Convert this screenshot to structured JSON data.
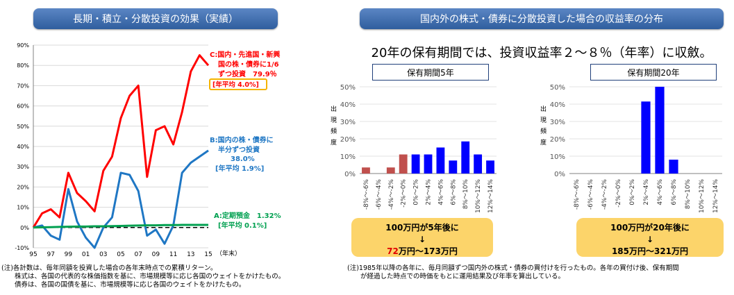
{
  "left_chart": {
    "title": "長期・積立・分散投資の効果（実績）",
    "y_ticks": [
      "90%",
      "80%",
      "70%",
      "60%",
      "50%",
      "40%",
      "30%",
      "20%",
      "10%",
      "0%",
      "-10%"
    ],
    "x_ticks": [
      "95",
      "97",
      "99",
      "01",
      "03",
      "05",
      "07",
      "09",
      "11",
      "13",
      "15"
    ],
    "x_unit": "（年末）",
    "series_c": {
      "label_lines": [
        "C:国内・先進国・新興",
        "国の株・債券に1/6",
        "ずつ投資　79.9％"
      ],
      "avg": "[年平均 4.0%]",
      "color": "#ff0000"
    },
    "series_b": {
      "label_lines": [
        "B:国内の株・債券に",
        "半分ずつ投資",
        "38.0%",
        "[年平均 1.9%]"
      ],
      "color": "#1f77c4"
    },
    "series_a": {
      "label": "A:定期預金　1.32%",
      "avg": "[年平均 0.1%]",
      "color": "#00a050"
    }
  },
  "chart_data": [
    {
      "type": "line",
      "ylim": [
        -10,
        90
      ],
      "x": [
        1995,
        1996,
        1997,
        1998,
        1999,
        2000,
        2001,
        2002,
        2003,
        2004,
        2005,
        2006,
        2007,
        2008,
        2009,
        2010,
        2011,
        2012,
        2013,
        2014,
        2015
      ],
      "series": [
        {
          "name": "C:国内・先進国・新興国の株・債券に1/6ずつ投資",
          "values": [
            0,
            7,
            9,
            5,
            27,
            17,
            13,
            8,
            28,
            35,
            54,
            65,
            70,
            25,
            48,
            50,
            41,
            57,
            77,
            85,
            80
          ]
        },
        {
          "name": "B:国内の株・債券に半分ずつ投資",
          "values": [
            0,
            1,
            -4,
            -6,
            19,
            3,
            -5,
            -10,
            0,
            5,
            27,
            26,
            18,
            -4,
            -1,
            -8,
            1,
            27,
            32,
            35,
            38
          ]
        },
        {
          "name": "A:定期預金",
          "values": [
            0,
            0.1,
            0.2,
            0.3,
            0.4,
            0.5,
            0.5,
            0.6,
            0.6,
            0.7,
            0.8,
            0.9,
            1.0,
            1.1,
            1.1,
            1.2,
            1.2,
            1.3,
            1.3,
            1.3,
            1.32
          ]
        }
      ]
    },
    {
      "type": "bar",
      "title": "保有期間5年",
      "ylabel": "出現頻度",
      "ylim": [
        0,
        50
      ],
      "categories": [
        "-8%～-6%",
        "-6%～-4%",
        "-4%～-2%",
        "-2%～0%",
        "0%～2%",
        "2%～4%",
        "4%～6%",
        "6%～8%",
        "8%～10%",
        "10%～12%",
        "12%～14%"
      ],
      "values": [
        3.5,
        0,
        3.5,
        11,
        11,
        11,
        15,
        7.5,
        18.5,
        11,
        7.5
      ]
    },
    {
      "type": "bar",
      "title": "保有期間20年",
      "ylabel": "出現頻度",
      "ylim": [
        0,
        50
      ],
      "categories": [
        "-8%～-6%",
        "-6%～-4%",
        "-4%～-2%",
        "-2%～0%",
        "0%～2%",
        "2%～4%",
        "4%～6%",
        "6%～8%",
        "8%～10%",
        "10%～12%",
        "12%～14%"
      ],
      "values": [
        0,
        0,
        0,
        0,
        0,
        41.5,
        50,
        8,
        0,
        0,
        0
      ]
    }
  ],
  "right_panel": {
    "title": "国内外の株式・債券に分散投資した場合の収益率の分布",
    "subtitle": "20年の保有期間では、投資収益率２～８％（年率）に収斂。",
    "y_ticks_5": [
      "50%",
      "40%",
      "30%",
      "20%",
      "10%",
      "0%"
    ],
    "y_ticks_20": [
      "50%",
      "40%",
      "30%",
      "20%",
      "10%",
      "0%"
    ],
    "ylabel_chars": [
      "出",
      "現",
      "頻",
      "度"
    ],
    "result5": {
      "line1": "100万円が5年後に",
      "arrow": "↓",
      "low": "72",
      "rest": "万円～173万円"
    },
    "result20": {
      "line1": "100万円が20年後に",
      "arrow": "↓",
      "line3": "185万円～321万円"
    },
    "colors": {
      "negative": "#c0504d",
      "positive": "#0000ff"
    }
  },
  "notes_left": "(注)各計数は、毎年同額を投資した場合の各年末時点での累積リターン。\n　　株式は、各国の代表的な株価指数を基に、市場規模等に応じ各国のウェイトをかけたもの。\n　　債券は、各国の国債を基に、市場規模等に応じ各国のウェイトをかけたもの。",
  "notes_right": "(注)1985年以降の各年に、毎月同額ずつ国内外の株式・債券の買付けを行ったもの。各年の買付け後、保有期間\n　　が経過した時点での時価をもとに運用結果及び年率を算出している。"
}
